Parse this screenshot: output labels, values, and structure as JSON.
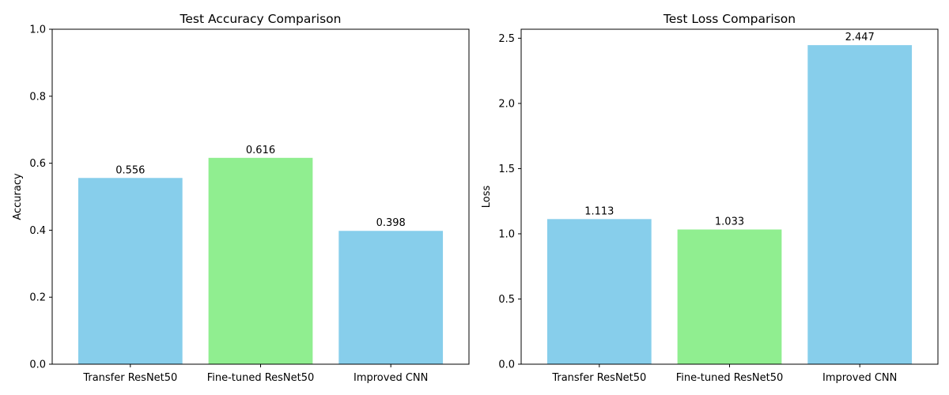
{
  "chart_data": [
    {
      "type": "bar",
      "title": "Test Accuracy Comparison",
      "xlabel": "",
      "ylabel": "Accuracy",
      "categories": [
        "Transfer ResNet50",
        "Fine-tuned ResNet50",
        "Improved CNN"
      ],
      "values": [
        0.556,
        0.616,
        0.398
      ],
      "value_labels": [
        "0.556",
        "0.616",
        "0.398"
      ],
      "bar_colors": [
        "#87ceeb",
        "#90ee90",
        "#87ceeb"
      ],
      "ylim": [
        0,
        1.0
      ],
      "yticks": [
        0.0,
        0.2,
        0.4,
        0.6,
        0.8,
        1.0
      ],
      "ytick_labels": [
        "0.0",
        "0.2",
        "0.4",
        "0.6",
        "0.8",
        "1.0"
      ],
      "grid": false
    },
    {
      "type": "bar",
      "title": "Test Loss Comparison",
      "xlabel": "",
      "ylabel": "Loss",
      "categories": [
        "Transfer ResNet50",
        "Fine-tuned ResNet50",
        "Improved CNN"
      ],
      "values": [
        1.113,
        1.033,
        2.447
      ],
      "value_labels": [
        "1.113",
        "1.033",
        "2.447"
      ],
      "bar_colors": [
        "#87ceeb",
        "#90ee90",
        "#87ceeb"
      ],
      "ylim": [
        0,
        2.569
      ],
      "yticks": [
        0.0,
        0.5,
        1.0,
        1.5,
        2.0,
        2.5
      ],
      "ytick_labels": [
        "0.0",
        "0.5",
        "1.0",
        "1.5",
        "2.0",
        "2.5"
      ],
      "grid": false
    }
  ]
}
